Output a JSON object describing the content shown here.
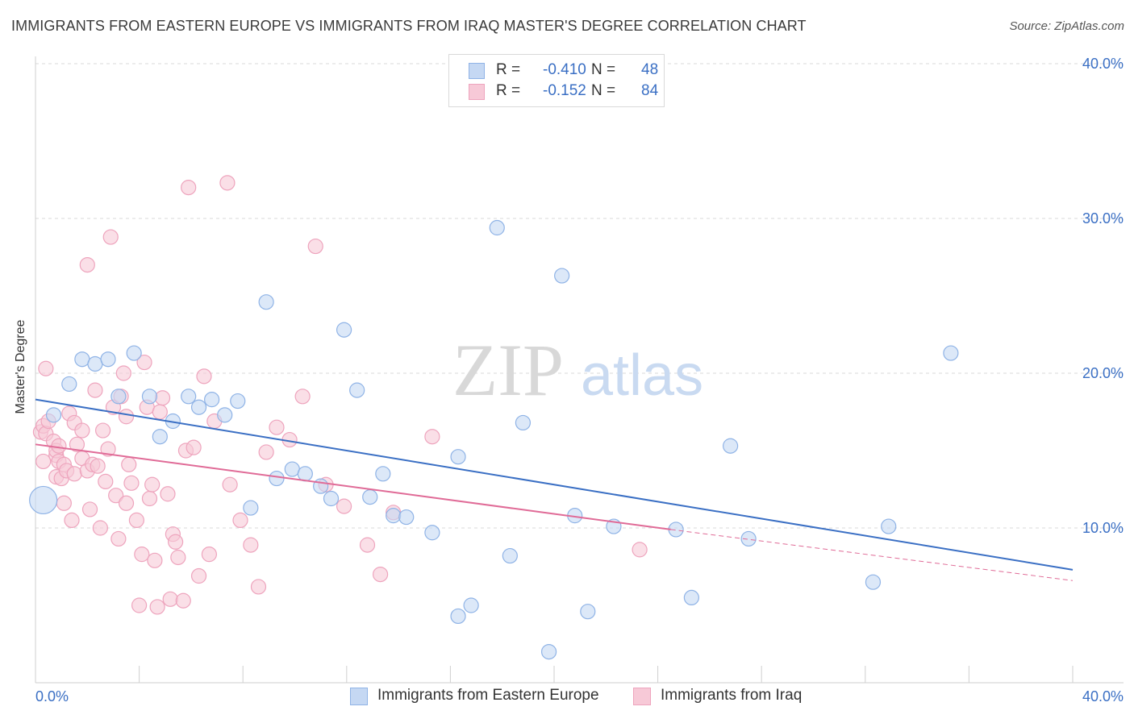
{
  "title": "IMMIGRANTS FROM EASTERN EUROPE VS IMMIGRANTS FROM IRAQ MASTER'S DEGREE CORRELATION CHART",
  "source": "Source: ZipAtlas.com",
  "watermark": {
    "zip": "ZIP",
    "atlas": "atlas"
  },
  "legend": {
    "series1": {
      "r_label": "R =",
      "r_value": "-0.410",
      "n_label": "N =",
      "n_value": "48"
    },
    "series2": {
      "r_label": "R =",
      "r_value": "-0.152",
      "n_label": "N =",
      "n_value": "84"
    }
  },
  "colors": {
    "blue": "#3a6fc4",
    "blue_fill": "#c5d8f3",
    "blue_stroke": "#8fb3e6",
    "pink": "#e06b97",
    "pink_fill": "#f7c9d7",
    "pink_stroke": "#eea4bd",
    "grid": "#d9d9d9",
    "tick_text": "#3a6fc4"
  },
  "chart_data": {
    "type": "scatter",
    "title": "IMMIGRANTS FROM EASTERN EUROPE VS IMMIGRANTS FROM IRAQ MASTER'S DEGREE CORRELATION CHART",
    "xlabel": "",
    "ylabel": "Master's Degree",
    "xlim": [
      0,
      40
    ],
    "ylim": [
      0,
      40
    ],
    "x_tick_labels": [
      "0.0%",
      "40.0%"
    ],
    "y_tick_labels": [
      "10.0%",
      "20.0%",
      "30.0%",
      "40.0%"
    ],
    "y_ticks": [
      10,
      20,
      30,
      40
    ],
    "grid": true,
    "legend_position": "top-center",
    "series": [
      {
        "name": "Immigrants from Eastern Europe",
        "color": "#3a6fc4",
        "trend": {
          "x": [
            0,
            40
          ],
          "y": [
            18.3,
            7.3
          ]
        },
        "points": [
          {
            "x": 0.3,
            "y": 11.8,
            "s": "large"
          },
          {
            "x": 0.7,
            "y": 17.3
          },
          {
            "x": 1.3,
            "y": 19.3
          },
          {
            "x": 1.8,
            "y": 20.9
          },
          {
            "x": 2.3,
            "y": 20.6
          },
          {
            "x": 2.8,
            "y": 20.9
          },
          {
            "x": 3.2,
            "y": 18.5
          },
          {
            "x": 3.8,
            "y": 21.3
          },
          {
            "x": 4.4,
            "y": 18.5
          },
          {
            "x": 4.8,
            "y": 15.9
          },
          {
            "x": 5.3,
            "y": 16.9
          },
          {
            "x": 5.9,
            "y": 18.5
          },
          {
            "x": 6.3,
            "y": 17.8
          },
          {
            "x": 6.8,
            "y": 18.3
          },
          {
            "x": 7.3,
            "y": 17.3
          },
          {
            "x": 7.8,
            "y": 18.2
          },
          {
            "x": 8.3,
            "y": 11.3
          },
          {
            "x": 8.9,
            "y": 24.6
          },
          {
            "x": 9.3,
            "y": 13.2
          },
          {
            "x": 9.9,
            "y": 13.8
          },
          {
            "x": 10.4,
            "y": 13.5
          },
          {
            "x": 11.0,
            "y": 12.7
          },
          {
            "x": 11.4,
            "y": 11.9
          },
          {
            "x": 11.9,
            "y": 22.8
          },
          {
            "x": 12.4,
            "y": 18.9
          },
          {
            "x": 12.9,
            "y": 12.0
          },
          {
            "x": 13.4,
            "y": 13.5
          },
          {
            "x": 13.8,
            "y": 10.8
          },
          {
            "x": 14.3,
            "y": 10.7
          },
          {
            "x": 15.3,
            "y": 9.7
          },
          {
            "x": 16.3,
            "y": 4.3
          },
          {
            "x": 16.3,
            "y": 14.6
          },
          {
            "x": 16.8,
            "y": 5.0
          },
          {
            "x": 17.8,
            "y": 29.4
          },
          {
            "x": 18.3,
            "y": 8.2
          },
          {
            "x": 18.8,
            "y": 16.8
          },
          {
            "x": 19.8,
            "y": 2.0
          },
          {
            "x": 20.3,
            "y": 26.3
          },
          {
            "x": 20.8,
            "y": 10.8
          },
          {
            "x": 21.3,
            "y": 4.6
          },
          {
            "x": 22.3,
            "y": 10.1
          },
          {
            "x": 24.7,
            "y": 9.9
          },
          {
            "x": 25.3,
            "y": 5.5
          },
          {
            "x": 26.8,
            "y": 15.3
          },
          {
            "x": 27.5,
            "y": 9.3
          },
          {
            "x": 32.3,
            "y": 6.5
          },
          {
            "x": 32.9,
            "y": 10.1
          },
          {
            "x": 35.3,
            "y": 21.3
          }
        ]
      },
      {
        "name": "Immigrants from Iraq",
        "color": "#e06b97",
        "trend": {
          "x": [
            0,
            24.5
          ],
          "y": [
            15.4,
            9.9
          ]
        },
        "trend_dashed": {
          "x": [
            24.5,
            40
          ],
          "y": [
            9.9,
            6.6
          ]
        },
        "points": [
          {
            "x": 0.2,
            "y": 16.2
          },
          {
            "x": 0.3,
            "y": 16.6
          },
          {
            "x": 0.3,
            "y": 14.3
          },
          {
            "x": 0.4,
            "y": 16.1
          },
          {
            "x": 0.4,
            "y": 20.3
          },
          {
            "x": 0.5,
            "y": 16.9
          },
          {
            "x": 0.7,
            "y": 15.6
          },
          {
            "x": 0.8,
            "y": 13.3
          },
          {
            "x": 0.8,
            "y": 14.7
          },
          {
            "x": 0.8,
            "y": 15.0
          },
          {
            "x": 0.9,
            "y": 14.3
          },
          {
            "x": 0.9,
            "y": 15.3
          },
          {
            "x": 1.0,
            "y": 13.2
          },
          {
            "x": 1.1,
            "y": 14.1
          },
          {
            "x": 1.1,
            "y": 11.6
          },
          {
            "x": 1.2,
            "y": 13.7
          },
          {
            "x": 1.3,
            "y": 17.4
          },
          {
            "x": 1.4,
            "y": 10.5
          },
          {
            "x": 1.5,
            "y": 16.8
          },
          {
            "x": 1.5,
            "y": 13.5
          },
          {
            "x": 1.6,
            "y": 15.4
          },
          {
            "x": 1.8,
            "y": 14.5
          },
          {
            "x": 1.8,
            "y": 16.3
          },
          {
            "x": 2.0,
            "y": 13.7
          },
          {
            "x": 2.0,
            "y": 27.0
          },
          {
            "x": 2.1,
            "y": 11.2
          },
          {
            "x": 2.2,
            "y": 14.1
          },
          {
            "x": 2.3,
            "y": 18.9
          },
          {
            "x": 2.4,
            "y": 14.0
          },
          {
            "x": 2.5,
            "y": 10.0
          },
          {
            "x": 2.6,
            "y": 16.3
          },
          {
            "x": 2.7,
            "y": 13.0
          },
          {
            "x": 2.8,
            "y": 15.1
          },
          {
            "x": 2.9,
            "y": 28.8
          },
          {
            "x": 3.0,
            "y": 17.8
          },
          {
            "x": 3.1,
            "y": 12.1
          },
          {
            "x": 3.2,
            "y": 9.3
          },
          {
            "x": 3.3,
            "y": 18.5
          },
          {
            "x": 3.4,
            "y": 20.0
          },
          {
            "x": 3.5,
            "y": 11.6
          },
          {
            "x": 3.5,
            "y": 17.2
          },
          {
            "x": 3.6,
            "y": 14.1
          },
          {
            "x": 3.7,
            "y": 12.9
          },
          {
            "x": 3.9,
            "y": 10.5
          },
          {
            "x": 4.0,
            "y": 5.0
          },
          {
            "x": 4.1,
            "y": 8.3
          },
          {
            "x": 4.2,
            "y": 20.7
          },
          {
            "x": 4.3,
            "y": 17.8
          },
          {
            "x": 4.4,
            "y": 11.9
          },
          {
            "x": 4.5,
            "y": 12.8
          },
          {
            "x": 4.6,
            "y": 7.9
          },
          {
            "x": 4.7,
            "y": 4.9
          },
          {
            "x": 4.8,
            "y": 17.5
          },
          {
            "x": 4.9,
            "y": 18.4
          },
          {
            "x": 5.1,
            "y": 12.2
          },
          {
            "x": 5.2,
            "y": 5.4
          },
          {
            "x": 5.3,
            "y": 9.6
          },
          {
            "x": 5.4,
            "y": 9.1
          },
          {
            "x": 5.5,
            "y": 8.1
          },
          {
            "x": 5.7,
            "y": 5.3
          },
          {
            "x": 5.8,
            "y": 15.0
          },
          {
            "x": 5.9,
            "y": 32.0
          },
          {
            "x": 6.1,
            "y": 15.2
          },
          {
            "x": 6.3,
            "y": 6.9
          },
          {
            "x": 6.5,
            "y": 19.8
          },
          {
            "x": 6.7,
            "y": 8.3
          },
          {
            "x": 6.9,
            "y": 16.9
          },
          {
            "x": 7.4,
            "y": 32.3
          },
          {
            "x": 7.5,
            "y": 12.8
          },
          {
            "x": 7.9,
            "y": 10.5
          },
          {
            "x": 8.3,
            "y": 8.9
          },
          {
            "x": 8.6,
            "y": 6.2
          },
          {
            "x": 8.9,
            "y": 14.9
          },
          {
            "x": 9.3,
            "y": 16.5
          },
          {
            "x": 9.8,
            "y": 15.7
          },
          {
            "x": 10.3,
            "y": 18.5
          },
          {
            "x": 10.8,
            "y": 28.2
          },
          {
            "x": 11.2,
            "y": 12.8
          },
          {
            "x": 11.9,
            "y": 11.4
          },
          {
            "x": 12.8,
            "y": 8.9
          },
          {
            "x": 13.3,
            "y": 7.0
          },
          {
            "x": 13.8,
            "y": 11.0
          },
          {
            "x": 15.3,
            "y": 15.9
          },
          {
            "x": 23.3,
            "y": 8.6
          }
        ]
      }
    ]
  },
  "bottom_legend": {
    "series1_label": "Immigrants from Eastern Europe",
    "series2_label": "Immigrants from Iraq"
  }
}
